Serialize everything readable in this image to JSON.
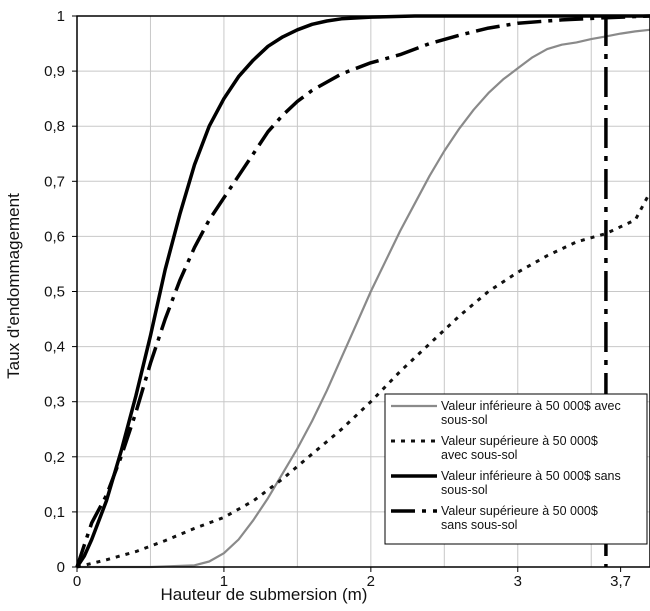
{
  "chart_data": {
    "type": "line",
    "title": "",
    "xlabel": "Hauteur de submersion (m)",
    "ylabel": "Taux d'endommagement",
    "xlim": [
      0,
      3.9
    ],
    "ylim": [
      0,
      1
    ],
    "grid": true,
    "x_ticks": [
      {
        "value": 0,
        "label": "0"
      },
      {
        "value": 1,
        "label": "1"
      },
      {
        "value": 2,
        "label": "2"
      },
      {
        "value": 3,
        "label": "3"
      },
      {
        "value": 3.7,
        "label": "3,7"
      }
    ],
    "x_grid": [
      0.5,
      1,
      1.5,
      2,
      2.5,
      3,
      3.5
    ],
    "y_ticks": [
      {
        "value": 0,
        "label": "0"
      },
      {
        "value": 0.1,
        "label": "0,1"
      },
      {
        "value": 0.2,
        "label": "0,2"
      },
      {
        "value": 0.3,
        "label": "0,3"
      },
      {
        "value": 0.4,
        "label": "0,4"
      },
      {
        "value": 0.5,
        "label": "0,5"
      },
      {
        "value": 0.6,
        "label": "0,6"
      },
      {
        "value": 0.7,
        "label": "0,7"
      },
      {
        "value": 0.8,
        "label": "0,8"
      },
      {
        "value": 0.9,
        "label": "0,9"
      },
      {
        "value": 1,
        "label": "1"
      }
    ],
    "vline": {
      "x": 3.6,
      "y_from": 0,
      "y_to": 1
    },
    "legend_position": "bottom-right",
    "series": [
      {
        "name": "Valeur inférieure à 50 000$ avec sous-sol",
        "color": "#8a8a8a",
        "style": "solid",
        "points": [
          [
            0,
            0
          ],
          [
            0.5,
            0
          ],
          [
            0.8,
            0.003
          ],
          [
            0.9,
            0.01
          ],
          [
            1.0,
            0.025
          ],
          [
            1.1,
            0.05
          ],
          [
            1.2,
            0.085
          ],
          [
            1.3,
            0.125
          ],
          [
            1.4,
            0.17
          ],
          [
            1.5,
            0.215
          ],
          [
            1.6,
            0.265
          ],
          [
            1.7,
            0.32
          ],
          [
            1.8,
            0.38
          ],
          [
            1.9,
            0.44
          ],
          [
            2.0,
            0.5
          ],
          [
            2.1,
            0.555
          ],
          [
            2.2,
            0.61
          ],
          [
            2.3,
            0.66
          ],
          [
            2.4,
            0.71
          ],
          [
            2.5,
            0.755
          ],
          [
            2.6,
            0.795
          ],
          [
            2.7,
            0.83
          ],
          [
            2.8,
            0.86
          ],
          [
            2.9,
            0.885
          ],
          [
            3.0,
            0.905
          ],
          [
            3.1,
            0.925
          ],
          [
            3.2,
            0.94
          ],
          [
            3.3,
            0.948
          ],
          [
            3.4,
            0.952
          ],
          [
            3.5,
            0.958
          ],
          [
            3.6,
            0.963
          ],
          [
            3.7,
            0.968
          ],
          [
            3.8,
            0.972
          ],
          [
            3.9,
            0.975
          ]
        ]
      },
      {
        "name": "Valeur supérieure à 50 000$ avec sous-sol",
        "color": "#111111",
        "style": "dotted",
        "points": [
          [
            0,
            0
          ],
          [
            0.2,
            0.013
          ],
          [
            0.4,
            0.028
          ],
          [
            0.6,
            0.048
          ],
          [
            0.8,
            0.07
          ],
          [
            1.0,
            0.09
          ],
          [
            1.2,
            0.12
          ],
          [
            1.4,
            0.16
          ],
          [
            1.6,
            0.205
          ],
          [
            1.8,
            0.25
          ],
          [
            2.0,
            0.3
          ],
          [
            2.2,
            0.355
          ],
          [
            2.4,
            0.405
          ],
          [
            2.6,
            0.455
          ],
          [
            2.8,
            0.5
          ],
          [
            3.0,
            0.535
          ],
          [
            3.2,
            0.565
          ],
          [
            3.4,
            0.59
          ],
          [
            3.6,
            0.605
          ],
          [
            3.8,
            0.63
          ],
          [
            3.9,
            0.68
          ]
        ]
      },
      {
        "name": "Valeur inférieure à 50 000$ sans sous-sol",
        "color": "#000000",
        "style": "solid-bold",
        "points": [
          [
            0,
            0
          ],
          [
            0.05,
            0.02
          ],
          [
            0.1,
            0.05
          ],
          [
            0.2,
            0.12
          ],
          [
            0.3,
            0.21
          ],
          [
            0.4,
            0.31
          ],
          [
            0.5,
            0.42
          ],
          [
            0.6,
            0.54
          ],
          [
            0.7,
            0.64
          ],
          [
            0.8,
            0.73
          ],
          [
            0.9,
            0.8
          ],
          [
            1.0,
            0.85
          ],
          [
            1.1,
            0.89
          ],
          [
            1.2,
            0.92
          ],
          [
            1.3,
            0.945
          ],
          [
            1.4,
            0.962
          ],
          [
            1.5,
            0.975
          ],
          [
            1.6,
            0.985
          ],
          [
            1.7,
            0.991
          ],
          [
            1.8,
            0.995
          ],
          [
            2.0,
            0.998
          ],
          [
            2.3,
            1.0
          ],
          [
            3.9,
            1.0
          ]
        ]
      },
      {
        "name": "Valeur supérieure à 50 000$ sans sous-sol",
        "color": "#000000",
        "style": "dash-dot",
        "points": [
          [
            0,
            0
          ],
          [
            0.1,
            0.08
          ],
          [
            0.2,
            0.13
          ],
          [
            0.3,
            0.2
          ],
          [
            0.4,
            0.28
          ],
          [
            0.5,
            0.37
          ],
          [
            0.6,
            0.45
          ],
          [
            0.7,
            0.52
          ],
          [
            0.8,
            0.58
          ],
          [
            0.9,
            0.63
          ],
          [
            1.0,
            0.67
          ],
          [
            1.1,
            0.71
          ],
          [
            1.2,
            0.75
          ],
          [
            1.3,
            0.79
          ],
          [
            1.4,
            0.82
          ],
          [
            1.5,
            0.845
          ],
          [
            1.6,
            0.865
          ],
          [
            1.7,
            0.88
          ],
          [
            1.8,
            0.895
          ],
          [
            2.0,
            0.915
          ],
          [
            2.2,
            0.93
          ],
          [
            2.4,
            0.95
          ],
          [
            2.6,
            0.965
          ],
          [
            2.8,
            0.978
          ],
          [
            3.0,
            0.987
          ],
          [
            3.3,
            0.993
          ],
          [
            3.6,
            0.997
          ],
          [
            3.9,
            1.0
          ]
        ]
      }
    ]
  }
}
